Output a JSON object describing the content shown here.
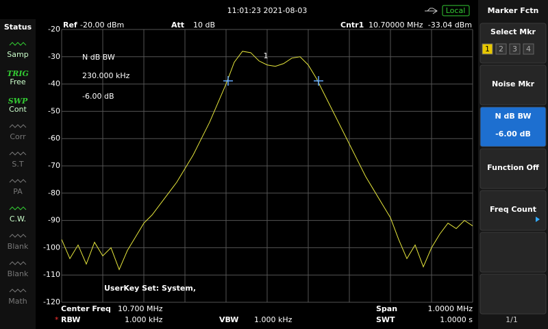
{
  "top_bar": {
    "time": "11:01:23 2021-08-03",
    "mode": "Local"
  },
  "status": {
    "title": "Status",
    "items": [
      {
        "label": "Samp"
      },
      {
        "tag": "TRIG",
        "label": "Free"
      },
      {
        "tag": "SWP",
        "label": "Cont"
      },
      {
        "label": "Corr"
      },
      {
        "label": "S.T"
      },
      {
        "label": "PA"
      },
      {
        "label": "C.W."
      },
      {
        "label": "Blank"
      },
      {
        "label": "Blank"
      },
      {
        "label": "Math"
      }
    ]
  },
  "menu": {
    "title": "Marker Fctn",
    "buttons": [
      {
        "label": "Select Mkr",
        "options": [
          "1",
          "2",
          "3",
          "4"
        ]
      },
      {
        "label": "Noise Mkr"
      },
      {
        "label": "N dB BW",
        "value": "-6.00 dB"
      },
      {
        "label": "Function Off"
      },
      {
        "label": "Freq Count"
      }
    ],
    "page": "1/1"
  },
  "header": {
    "ref_label": "Ref",
    "ref": "-20.00 dBm",
    "att_label": "Att",
    "att": "10 dB",
    "marker_label": "Cntr1",
    "marker_freq": "10.70000 MHz",
    "marker_level": "-33.04 dBm"
  },
  "readout": [
    "N dB BW",
    "230.000 kHz",
    "-6.00 dB"
  ],
  "marker": "1",
  "footer": {
    "userkey": "UserKey Set:   System,",
    "center_label": "Center Freq",
    "center": "10.700 MHz",
    "span_label": "Span",
    "span": "1.0000 MHz",
    "rbw_flag": "*",
    "rbw_label": "RBW",
    "rbw": "1.000 kHz",
    "vbw_label": "VBW",
    "vbw": "1.000 kHz",
    "swt_label": "SWT",
    "swt": "1.0000 s"
  },
  "chart_data": {
    "type": "line",
    "xlim": [
      10.2,
      11.2
    ],
    "ylim": [
      -120,
      -20
    ],
    "yticks": [
      -20,
      -30,
      -40,
      -50,
      -60,
      -70,
      -80,
      -90,
      -100,
      -110,
      -120
    ],
    "grid": true,
    "x": [
      10.2,
      10.22,
      10.24,
      10.26,
      10.28,
      10.3,
      10.32,
      10.34,
      10.36,
      10.38,
      10.4,
      10.42,
      10.44,
      10.46,
      10.48,
      10.5,
      10.52,
      10.54,
      10.56,
      10.58,
      10.6,
      10.62,
      10.64,
      10.66,
      10.68,
      10.7,
      10.72,
      10.74,
      10.76,
      10.78,
      10.8,
      10.82,
      10.84,
      10.86,
      10.88,
      10.9,
      10.92,
      10.94,
      10.96,
      10.98,
      11.0,
      11.02,
      11.04,
      11.06,
      11.08,
      11.1,
      11.12,
      11.14,
      11.16,
      11.18,
      11.2
    ],
    "series": [
      {
        "color": "#e8e83c",
        "values": [
          -97,
          -104,
          -99,
          -106,
          -98,
          -103,
          -100,
          -108,
          -101,
          -96,
          -91,
          -88,
          -84,
          -80,
          -76,
          -71,
          -66,
          -60,
          -54,
          -47,
          -40,
          -32,
          -28,
          -28.5,
          -31.5,
          -33,
          -33.5,
          -32.5,
          -30.5,
          -30,
          -33,
          -38,
          -44,
          -50,
          -56,
          -62,
          -68,
          -74,
          -79,
          -84,
          -89,
          -97,
          -104,
          -99,
          -107,
          -100,
          -95,
          -91,
          -93,
          -90,
          -92
        ]
      }
    ]
  }
}
